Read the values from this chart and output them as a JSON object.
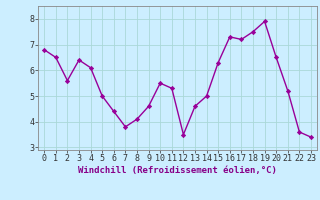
{
  "x": [
    0,
    1,
    2,
    3,
    4,
    5,
    6,
    7,
    8,
    9,
    10,
    11,
    12,
    13,
    14,
    15,
    16,
    17,
    18,
    19,
    20,
    21,
    22,
    23
  ],
  "y": [
    6.8,
    6.5,
    5.6,
    6.4,
    6.1,
    5.0,
    4.4,
    3.8,
    4.1,
    4.6,
    5.5,
    5.3,
    3.5,
    4.6,
    5.0,
    6.3,
    7.3,
    7.2,
    7.5,
    7.9,
    6.5,
    5.2,
    3.6,
    3.4
  ],
  "line_color": "#990099",
  "marker": "D",
  "marker_size": 2.2,
  "line_width": 1.0,
  "xlabel": "Windchill (Refroidissement éolien,°C)",
  "xlabel_fontsize": 6.5,
  "ylim": [
    2.9,
    8.5
  ],
  "yticks": [
    3,
    4,
    5,
    6,
    7,
    8
  ],
  "xticks": [
    0,
    1,
    2,
    3,
    4,
    5,
    6,
    7,
    8,
    9,
    10,
    11,
    12,
    13,
    14,
    15,
    16,
    17,
    18,
    19,
    20,
    21,
    22,
    23
  ],
  "grid_color": "#aad8d8",
  "bg_color": "#cceeff",
  "tick_fontsize": 6,
  "xlabel_color": "#880088",
  "spine_color": "#888888"
}
